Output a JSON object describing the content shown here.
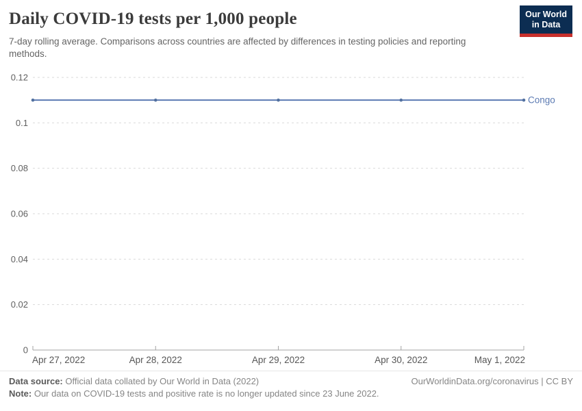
{
  "header": {
    "title": "Daily COVID-19 tests per 1,000 people",
    "subtitle": "7-day rolling average. Comparisons across countries are affected by differences in testing policies and reporting methods.",
    "logo": {
      "line1": "Our World",
      "line2": "in Data",
      "bg_color": "#0c2d52",
      "accent_color": "#c8302c"
    }
  },
  "chart_data": {
    "type": "line",
    "title": "Daily COVID-19 tests per 1,000 people",
    "x": [
      "Apr 27, 2022",
      "Apr 28, 2022",
      "Apr 29, 2022",
      "Apr 30, 2022",
      "May 1, 2022"
    ],
    "series": [
      {
        "name": "Congo",
        "values": [
          0.11,
          0.11,
          0.11,
          0.11,
          0.11
        ],
        "color": "#5b7ab2",
        "marker_color": "#51709f"
      }
    ],
    "xlabel": "",
    "ylabel": "",
    "ylim": [
      0,
      0.12
    ],
    "yticks": [
      0,
      0.02,
      0.04,
      0.06,
      0.08,
      0.1,
      0.12
    ],
    "ytick_labels": [
      "0",
      "0.02",
      "0.04",
      "0.06",
      "0.08",
      "0.1",
      "0.12"
    ],
    "grid": "horizontal-dashed",
    "grid_color": "#d9d9d9",
    "axis_color": "#a3a3a3",
    "tick_label_color": "#5f5f5f",
    "legend_position": "end-of-line"
  },
  "footer": {
    "source_label": "Data source:",
    "source_text": " Official data collated by Our World in Data (2022)",
    "link": "OurWorldinData.org/coronavirus | CC BY",
    "note_label": "Note:",
    "note_text": " Our data on COVID-19 tests and positive rate is no longer updated since 23 June 2022."
  }
}
